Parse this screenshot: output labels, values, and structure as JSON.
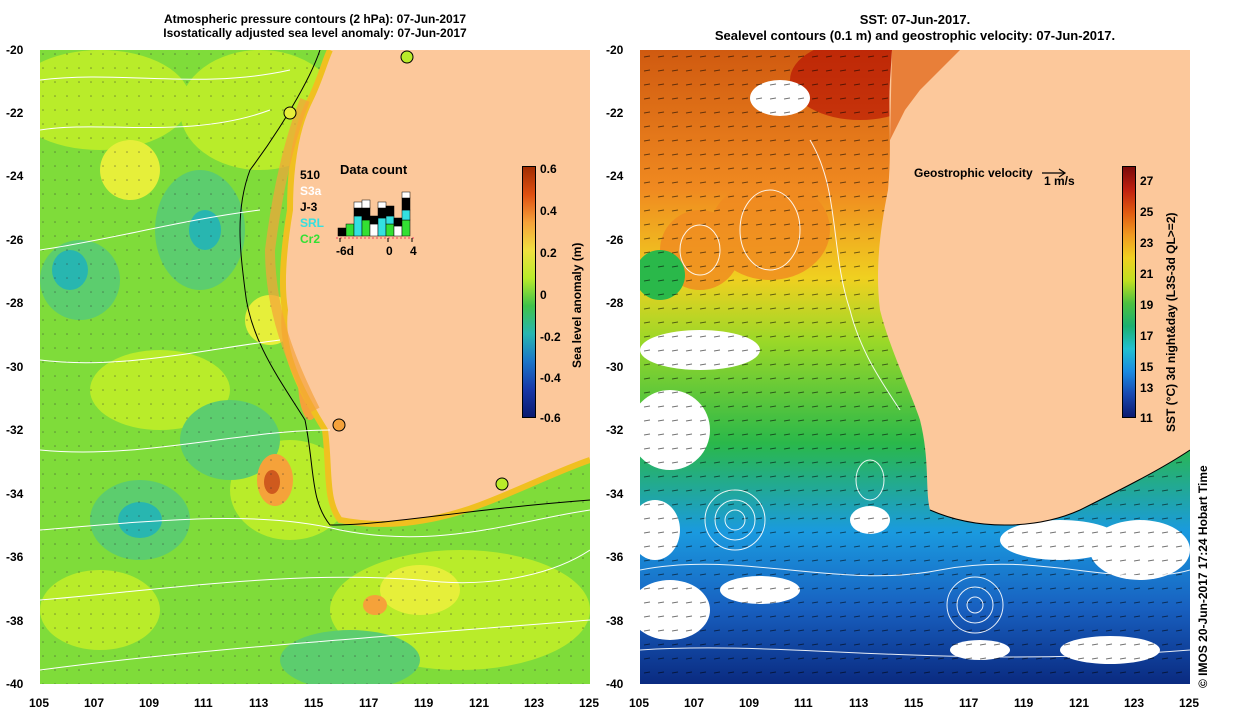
{
  "left_panel": {
    "title_line1": "Atmospheric pressure contours (2 hPa): 07-Jun-2017",
    "title_line2": "Isostatically adjusted sea level anomaly: 07-Jun-2017",
    "colorbar_label": "Sea level anomaly (m)",
    "colorbar_ticks": [
      "0.6",
      "0.4",
      "0.2",
      "0",
      "-0.2",
      "-0.4",
      "-0.6"
    ],
    "data_count": {
      "title": "Data count",
      "satellites": [
        {
          "name": "510",
          "color": "#000000"
        },
        {
          "name": "S3a",
          "color": "#ffffff"
        },
        {
          "name": "J-3",
          "color": "#000000"
        },
        {
          "name": "SRL",
          "color": "#33e0e0"
        },
        {
          "name": "Cr2",
          "color": "#33e033"
        }
      ],
      "axis_labels": [
        "-6d",
        "0",
        "4"
      ]
    }
  },
  "right_panel": {
    "title_line1": "SST: 07-Jun-2017.",
    "title_line2": "Sealevel contours (0.1 m) and geostrophic velocity: 07-Jun-2017.",
    "velocity_label": "Geostrophic velocity",
    "velocity_scale": "1 m/s",
    "colorbar_label": "SST (°C) 3d night&day (L3S-3d QL>=2)",
    "colorbar_ticks": [
      "27",
      "25",
      "23",
      "21",
      "19",
      "17",
      "15",
      "13",
      "11"
    ]
  },
  "lat_ticks": [
    "-20",
    "-22",
    "-24",
    "-26",
    "-28",
    "-30",
    "-32",
    "-34",
    "-36",
    "-38",
    "-40"
  ],
  "lon_ticks": [
    "105",
    "107",
    "109",
    "111",
    "113",
    "115",
    "117",
    "119",
    "121",
    "123",
    "125"
  ],
  "credit": "© IMOS 20-Jun-2017 17:24 Hobart Time"
}
